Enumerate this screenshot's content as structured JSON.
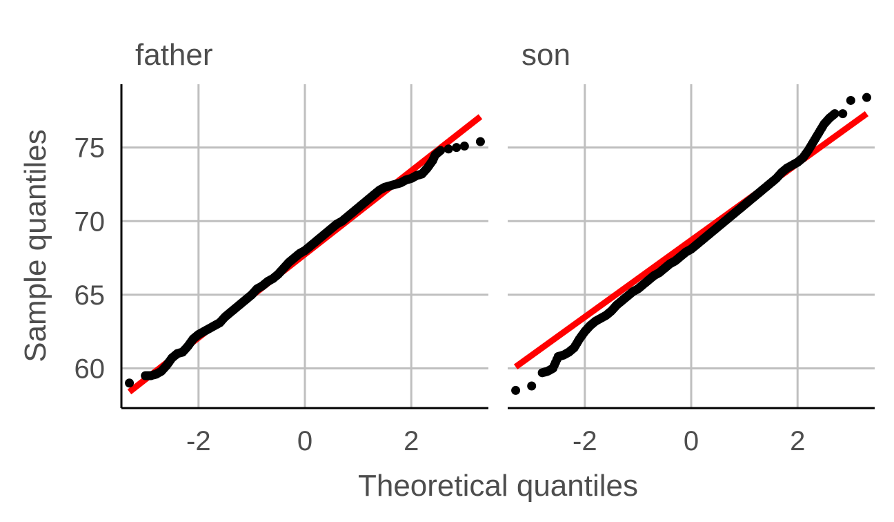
{
  "chart_data": {
    "type": "scatter",
    "xlabel": "Theoretical quantiles",
    "ylabel": "Sample quantiles",
    "xlim": [
      -3.45,
      3.45
    ],
    "ylim": [
      57.3,
      79.3
    ],
    "x_ticks": [
      -2,
      0,
      2
    ],
    "x_tick_labels": [
      "-2",
      "0",
      "2"
    ],
    "y_ticks": [
      60,
      65,
      70,
      75
    ],
    "y_tick_labels": [
      "60",
      "65",
      "70",
      "75"
    ],
    "grid": true,
    "point_color": "#000000",
    "line_color": "#ff0000",
    "panels": [
      {
        "title": "father",
        "reference_line": {
          "x": [
            -3.3,
            3.3
          ],
          "y": [
            58.4,
            77.1
          ]
        },
        "points": [
          [
            -3.3,
            59.0
          ],
          [
            -3.0,
            59.5
          ],
          [
            -2.9,
            59.5
          ],
          [
            -2.8,
            59.6
          ],
          [
            -2.7,
            59.8
          ],
          [
            -2.6,
            60.2
          ],
          [
            -2.5,
            60.7
          ],
          [
            -2.4,
            61.0
          ],
          [
            -2.3,
            61.1
          ],
          [
            -2.2,
            61.5
          ],
          [
            -2.1,
            62.0
          ],
          [
            -2.0,
            62.3
          ],
          [
            -1.9,
            62.5
          ],
          [
            -1.8,
            62.7
          ],
          [
            -1.7,
            62.9
          ],
          [
            -1.6,
            63.1
          ],
          [
            -1.5,
            63.5
          ],
          [
            -1.4,
            63.8
          ],
          [
            -1.3,
            64.1
          ],
          [
            -1.2,
            64.4
          ],
          [
            -1.1,
            64.7
          ],
          [
            -1.0,
            65.0
          ],
          [
            -0.9,
            65.4
          ],
          [
            -0.8,
            65.6
          ],
          [
            -0.7,
            65.9
          ],
          [
            -0.6,
            66.1
          ],
          [
            -0.5,
            66.4
          ],
          [
            -0.4,
            66.8
          ],
          [
            -0.3,
            67.2
          ],
          [
            -0.2,
            67.5
          ],
          [
            -0.1,
            67.8
          ],
          [
            0.0,
            68.0
          ],
          [
            0.1,
            68.3
          ],
          [
            0.2,
            68.6
          ],
          [
            0.3,
            68.9
          ],
          [
            0.4,
            69.2
          ],
          [
            0.5,
            69.5
          ],
          [
            0.6,
            69.8
          ],
          [
            0.7,
            70.0
          ],
          [
            0.8,
            70.3
          ],
          [
            0.9,
            70.6
          ],
          [
            1.0,
            70.9
          ],
          [
            1.1,
            71.2
          ],
          [
            1.2,
            71.5
          ],
          [
            1.3,
            71.8
          ],
          [
            1.4,
            72.1
          ],
          [
            1.5,
            72.3
          ],
          [
            1.6,
            72.4
          ],
          [
            1.7,
            72.5
          ],
          [
            1.8,
            72.6
          ],
          [
            1.9,
            72.8
          ],
          [
            2.0,
            72.9
          ],
          [
            2.1,
            73.1
          ],
          [
            2.2,
            73.2
          ],
          [
            2.3,
            73.6
          ],
          [
            2.4,
            74.1
          ],
          [
            2.45,
            74.5
          ],
          [
            2.55,
            74.8
          ],
          [
            2.7,
            74.9
          ],
          [
            2.85,
            75.0
          ],
          [
            3.0,
            75.1
          ],
          [
            3.3,
            75.4
          ]
        ]
      },
      {
        "title": "son",
        "reference_line": {
          "x": [
            -3.3,
            3.3
          ],
          "y": [
            60.1,
            77.3
          ]
        },
        "points": [
          [
            -3.3,
            58.5
          ],
          [
            -3.0,
            58.8
          ],
          [
            -2.8,
            59.7
          ],
          [
            -2.7,
            59.8
          ],
          [
            -2.6,
            60.0
          ],
          [
            -2.5,
            60.8
          ],
          [
            -2.4,
            60.9
          ],
          [
            -2.3,
            61.1
          ],
          [
            -2.2,
            61.4
          ],
          [
            -2.1,
            62.0
          ],
          [
            -2.0,
            62.5
          ],
          [
            -1.9,
            62.9
          ],
          [
            -1.8,
            63.2
          ],
          [
            -1.7,
            63.4
          ],
          [
            -1.6,
            63.6
          ],
          [
            -1.5,
            63.9
          ],
          [
            -1.4,
            64.3
          ],
          [
            -1.3,
            64.6
          ],
          [
            -1.2,
            64.9
          ],
          [
            -1.1,
            65.2
          ],
          [
            -1.0,
            65.4
          ],
          [
            -0.9,
            65.7
          ],
          [
            -0.8,
            66.0
          ],
          [
            -0.7,
            66.3
          ],
          [
            -0.6,
            66.5
          ],
          [
            -0.5,
            66.8
          ],
          [
            -0.4,
            67.1
          ],
          [
            -0.3,
            67.3
          ],
          [
            -0.2,
            67.6
          ],
          [
            -0.1,
            67.9
          ],
          [
            0.0,
            68.1
          ],
          [
            0.1,
            68.4
          ],
          [
            0.2,
            68.7
          ],
          [
            0.3,
            69.0
          ],
          [
            0.4,
            69.3
          ],
          [
            0.5,
            69.6
          ],
          [
            0.6,
            69.9
          ],
          [
            0.7,
            70.2
          ],
          [
            0.8,
            70.5
          ],
          [
            0.9,
            70.8
          ],
          [
            1.0,
            71.1
          ],
          [
            1.1,
            71.4
          ],
          [
            1.2,
            71.7
          ],
          [
            1.3,
            72.0
          ],
          [
            1.4,
            72.3
          ],
          [
            1.5,
            72.6
          ],
          [
            1.6,
            72.9
          ],
          [
            1.7,
            73.3
          ],
          [
            1.8,
            73.6
          ],
          [
            1.9,
            73.8
          ],
          [
            2.0,
            74.0
          ],
          [
            2.1,
            74.3
          ],
          [
            2.2,
            74.8
          ],
          [
            2.3,
            75.4
          ],
          [
            2.4,
            76.0
          ],
          [
            2.5,
            76.6
          ],
          [
            2.6,
            77.0
          ],
          [
            2.7,
            77.3
          ],
          [
            2.85,
            77.3
          ],
          [
            3.0,
            78.2
          ],
          [
            3.3,
            78.4
          ]
        ]
      }
    ]
  }
}
